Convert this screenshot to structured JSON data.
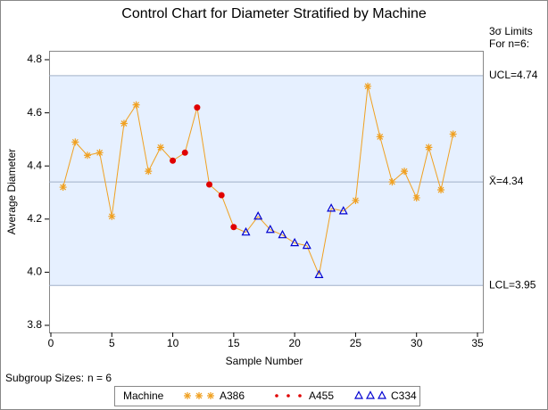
{
  "chart_data": {
    "type": "control",
    "title": "Control Chart for Diameter Stratified by Machine",
    "x_label": "Sample Number",
    "y_label": "Average Diameter",
    "limits_title": "3σ Limits",
    "limits_subtitle": "For n=6:",
    "limits": [
      {
        "label": "UCL=",
        "value": 4.74
      },
      {
        "label": "X̄=",
        "value": 4.34
      },
      {
        "label": "LCL=",
        "value": 3.95
      }
    ],
    "subgroup_label": "Subgroup Sizes:",
    "subgroup_text": "n = 6",
    "legend_title": "Machine",
    "line_color": "#f0a020",
    "band_color": "#e6f0ff",
    "xlim": [
      0,
      35
    ],
    "xticks": [
      0,
      5,
      10,
      15,
      20,
      25,
      30,
      35
    ],
    "ylim": [
      3.8,
      4.8
    ],
    "yticks": [
      3.8,
      {
        "value": 4,
        "label": "4.0"
      },
      4.2,
      4.4,
      4.6,
      4.8
    ],
    "series": [
      {
        "name": "A386",
        "color": "#f0a020",
        "marker": "star",
        "x": [
          1,
          2,
          3,
          4,
          5,
          6,
          7,
          8,
          9,
          25,
          26,
          27,
          28,
          29,
          30,
          31,
          32,
          33
        ],
        "values": [
          4.32,
          4.49,
          4.44,
          4.45,
          4.21,
          4.56,
          4.63,
          4.38,
          4.47,
          4.27,
          4.7,
          4.51,
          4.34,
          4.38,
          4.28,
          4.47,
          4.31,
          4.52
        ]
      },
      {
        "name": "A455",
        "color": "#e00000",
        "marker": "dot",
        "x": [
          10,
          11,
          12,
          13,
          14,
          15
        ],
        "values": [
          4.42,
          4.45,
          4.62,
          4.33,
          4.29,
          4.17
        ]
      },
      {
        "name": "C334",
        "color": "#0000d0",
        "marker": "triangle",
        "x": [
          16,
          17,
          18,
          19,
          20,
          21,
          22,
          23,
          24
        ],
        "values": [
          4.15,
          4.21,
          4.16,
          4.14,
          4.11,
          4.1,
          3.99,
          4.24,
          4.23
        ]
      }
    ]
  }
}
